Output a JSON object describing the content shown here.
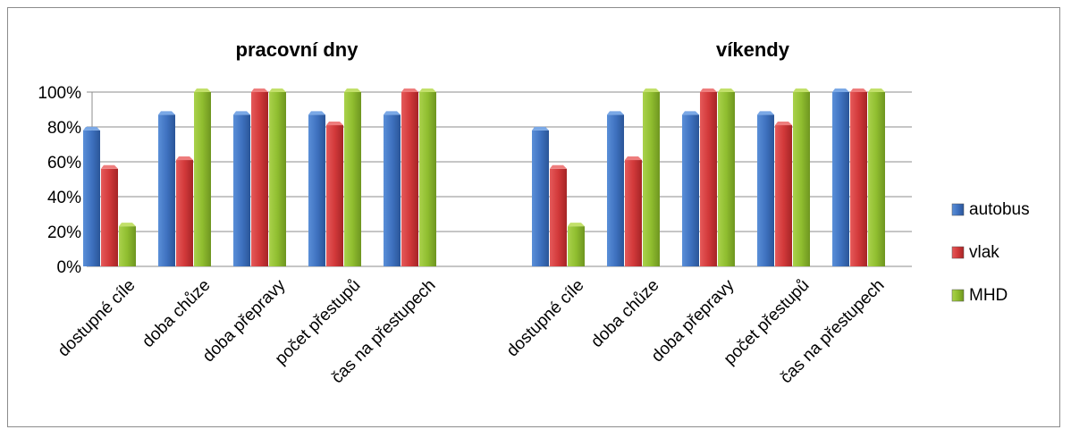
{
  "chart_data": {
    "type": "bar",
    "titles": [
      "pracovní dny",
      "víkendy"
    ],
    "groups": [
      {
        "title": "pracovní dny",
        "categories": [
          "dostupné cíle",
          "doba chůze",
          "doba přepravy",
          "počet přestupů",
          "čas na přestupech"
        ],
        "series": [
          {
            "name": "autobus",
            "values": [
              78,
              87,
              87,
              87,
              87
            ]
          },
          {
            "name": "vlak",
            "values": [
              56,
              61,
              100,
              81,
              100
            ]
          },
          {
            "name": "MHD",
            "values": [
              23,
              100,
              100,
              100,
              100
            ]
          }
        ]
      },
      {
        "title": "víkendy",
        "categories": [
          "dostupné cíle",
          "doba chůze",
          "doba přepravy",
          "počet přestupů",
          "čas na přestupech"
        ],
        "series": [
          {
            "name": "autobus",
            "values": [
              78,
              87,
              87,
              87,
              100
            ]
          },
          {
            "name": "vlak",
            "values": [
              56,
              61,
              100,
              81,
              100
            ]
          },
          {
            "name": "MHD",
            "values": [
              23,
              100,
              100,
              100,
              100
            ]
          }
        ]
      }
    ],
    "ylim": [
      0,
      100
    ],
    "yticks": [
      "0%",
      "20%",
      "40%",
      "60%",
      "80%",
      "100%"
    ],
    "legend": [
      {
        "name": "autobus",
        "color": "#3f72c0"
      },
      {
        "name": "vlak",
        "color": "#d2393a"
      },
      {
        "name": "MHD",
        "color": "#8fbd2f"
      }
    ],
    "legend_position": "right",
    "grid": true
  }
}
